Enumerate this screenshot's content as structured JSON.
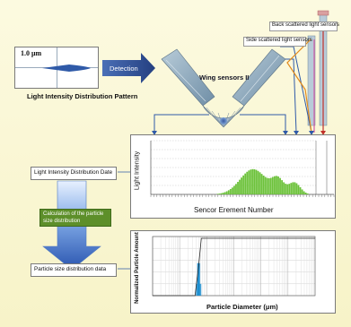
{
  "pattern": {
    "scale_label": "1.0 μm",
    "caption": "Light Intensity Distribution Pattern"
  },
  "detection_label": "Detection",
  "sensors": {
    "wing": "Wing sensors II",
    "side": "Side scattered light sensors",
    "back": "Back scattered light sensors"
  },
  "flow": {
    "date_label": "Light Intensity Distribution Date",
    "calc_label": "Calculation of the particle size distribution",
    "result_label": "Particle size distribution data"
  },
  "colors": {
    "accent_blue": "#2f5aa8",
    "chart_green": "#6cc23a",
    "dist_blue": "#1e8fd0",
    "sensor_gray": "#8aa3b6",
    "calc_green": "#5d8f2a"
  },
  "chart_data": [
    {
      "type": "area",
      "xlabel": "Sencor Erement Number",
      "ylabel": "Light Intensity",
      "peaks": [
        {
          "x": 62,
          "height": 0.47,
          "width": 11
        },
        {
          "x": 77,
          "height": 0.26,
          "width": 5
        },
        {
          "x": 87,
          "height": 0.22,
          "width": 5
        }
      ],
      "x_range": [
        0,
        100
      ]
    },
    {
      "type": "area",
      "xlabel": "Particle Diameter (μm)",
      "ylabel": "Normalized Particle Amount",
      "x_scale": "log",
      "peak_x": 0.5,
      "peak_height": 1.0
    }
  ]
}
